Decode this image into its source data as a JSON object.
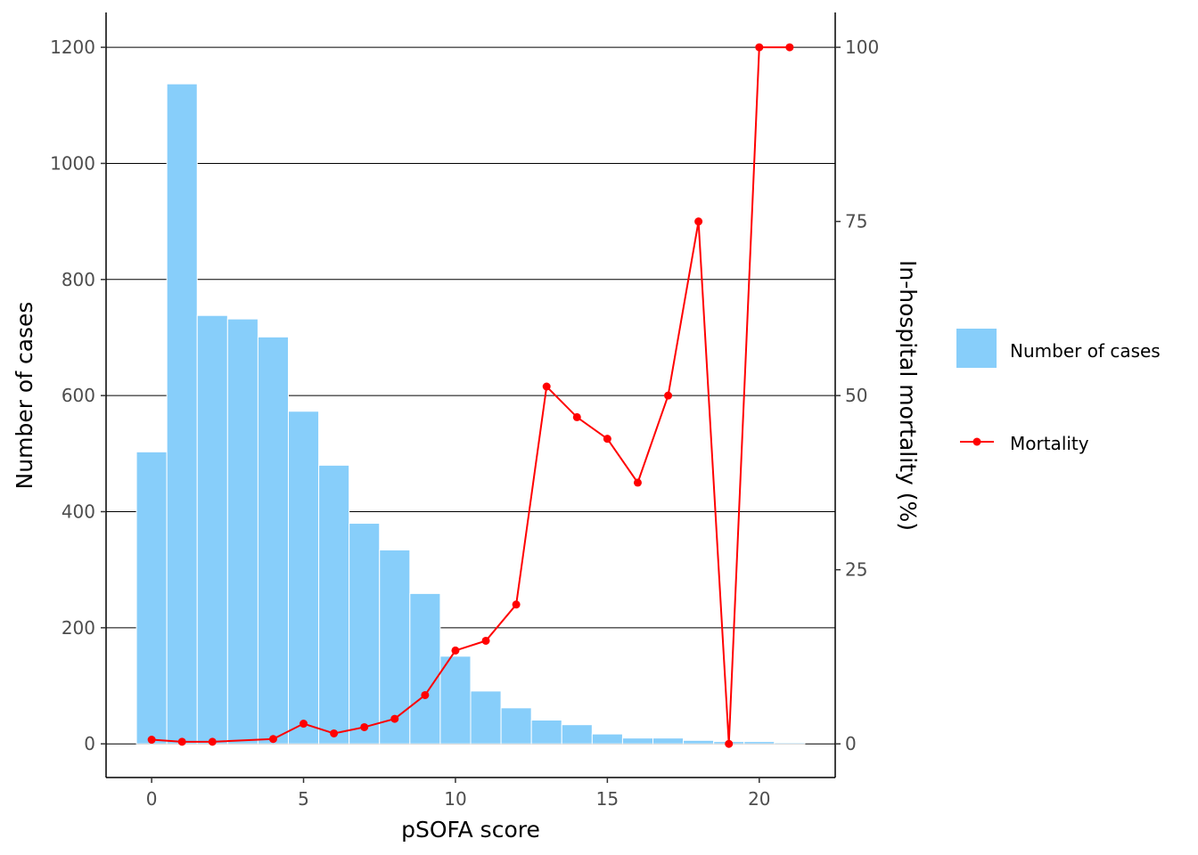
{
  "chart_data": {
    "type": "bar",
    "xlabel": "pSOFA score",
    "ylabel_left": "Number of cases",
    "ylabel_right": "In-hospital mortality (%)",
    "x_ticks": [
      "0",
      "5",
      "10",
      "15",
      "20"
    ],
    "x_tick_values": [
      0,
      5,
      10,
      15,
      20
    ],
    "y_left_ticks": [
      "0",
      "200",
      "400",
      "600",
      "800",
      "1000",
      "1200"
    ],
    "y_left_tick_values": [
      0,
      200,
      400,
      600,
      800,
      1000,
      1200
    ],
    "y_right_ticks": [
      "0",
      "25",
      "50",
      "75",
      "100"
    ],
    "y_right_tick_values": [
      0,
      25,
      50,
      75,
      100
    ],
    "xlim": [
      -1.5,
      22.5
    ],
    "ylim_left": [
      -58,
      1260
    ],
    "ylim_right": [
      -4.83,
      105
    ],
    "grid": "horizontal major lines",
    "legend_position": "right",
    "colors": {
      "bar": "#87CEFA",
      "line": "#FF0000",
      "grid": "#000000"
    },
    "series": [
      {
        "name": "Number of cases",
        "type": "bar",
        "axis": "left",
        "x": [
          0,
          1,
          2,
          3,
          4,
          5,
          6,
          7,
          8,
          9,
          10,
          11,
          12,
          13,
          14,
          15,
          16,
          17,
          18,
          19,
          20,
          21
        ],
        "values": [
          503,
          1137,
          738,
          732,
          701,
          573,
          480,
          380,
          334,
          259,
          151,
          91,
          62,
          41,
          33,
          17,
          10,
          10,
          6,
          4,
          4,
          2
        ]
      },
      {
        "name": "Mortality",
        "type": "line",
        "axis": "right",
        "x": [
          0,
          1,
          2,
          4,
          5,
          6,
          7,
          8,
          9,
          10,
          11,
          12,
          13,
          14,
          15,
          16,
          17,
          18,
          19,
          20,
          21
        ],
        "values": [
          0.6,
          0.3,
          0.3,
          0.7,
          2.9,
          1.5,
          2.4,
          3.6,
          7.0,
          13.4,
          14.8,
          20.0,
          51.3,
          46.9,
          43.8,
          37.5,
          50.0,
          75.0,
          0.0,
          100.0,
          100.0
        ]
      }
    ]
  }
}
